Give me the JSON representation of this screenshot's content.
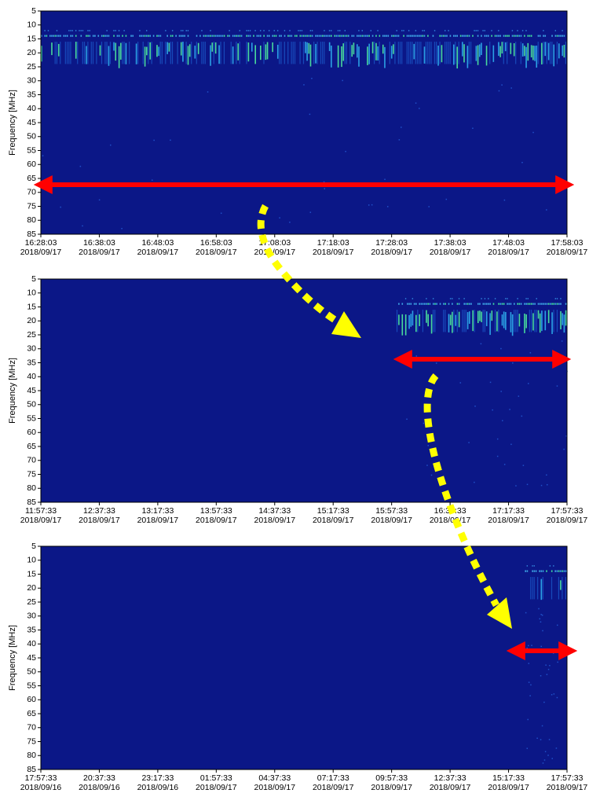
{
  "chart_data": [
    {
      "type": "spectrogram",
      "ylabel": "Frequency [MHz]",
      "ylim": [
        85,
        5
      ],
      "yticks": [
        5,
        10,
        15,
        20,
        25,
        30,
        35,
        40,
        45,
        50,
        55,
        60,
        65,
        70,
        75,
        80,
        85
      ],
      "xticks": [
        [
          "16:28:03",
          "2018/09/17"
        ],
        [
          "16:38:03",
          "2018/09/17"
        ],
        [
          "16:48:03",
          "2018/09/17"
        ],
        [
          "16:58:03",
          "2018/09/17"
        ],
        [
          "17:08:03",
          "2018/09/17"
        ],
        [
          "17:18:03",
          "2018/09/17"
        ],
        [
          "17:28:03",
          "2018/09/17"
        ],
        [
          "17:38:03",
          "2018/09/17"
        ],
        [
          "17:48:03",
          "2018/09/17"
        ],
        [
          "17:58:03",
          "2018/09/17"
        ]
      ]
    },
    {
      "type": "spectrogram",
      "ylabel": "Frequency [MHz]",
      "ylim": [
        85,
        5
      ],
      "yticks": [
        5,
        10,
        15,
        20,
        25,
        30,
        35,
        40,
        45,
        50,
        55,
        60,
        65,
        70,
        75,
        80,
        85
      ],
      "xticks": [
        [
          "11:57:33",
          "2018/09/17"
        ],
        [
          "12:37:33",
          "2018/09/17"
        ],
        [
          "13:17:33",
          "2018/09/17"
        ],
        [
          "13:57:33",
          "2018/09/17"
        ],
        [
          "14:37:33",
          "2018/09/17"
        ],
        [
          "15:17:33",
          "2018/09/17"
        ],
        [
          "15:57:33",
          "2018/09/17"
        ],
        [
          "16:37:33",
          "2018/09/17"
        ],
        [
          "17:17:33",
          "2018/09/17"
        ],
        [
          "17:57:33",
          "2018/09/17"
        ]
      ]
    },
    {
      "type": "spectrogram",
      "ylabel": "Frequency [MHz]",
      "ylim": [
        85,
        5
      ],
      "yticks": [
        5,
        10,
        15,
        20,
        25,
        30,
        35,
        40,
        45,
        50,
        55,
        60,
        65,
        70,
        75,
        80,
        85
      ],
      "xticks": [
        [
          "17:57:33",
          "2018/09/16"
        ],
        [
          "20:37:33",
          "2018/09/16"
        ],
        [
          "23:17:33",
          "2018/09/16"
        ],
        [
          "01:57:33",
          "2018/09/17"
        ],
        [
          "04:37:33",
          "2018/09/17"
        ],
        [
          "07:17:33",
          "2018/09/17"
        ],
        [
          "09:57:33",
          "2018/09/17"
        ],
        [
          "12:37:33",
          "2018/09/17"
        ],
        [
          "15:17:33",
          "2018/09/17"
        ],
        [
          "17:57:33",
          "2018/09/17"
        ]
      ]
    }
  ]
}
